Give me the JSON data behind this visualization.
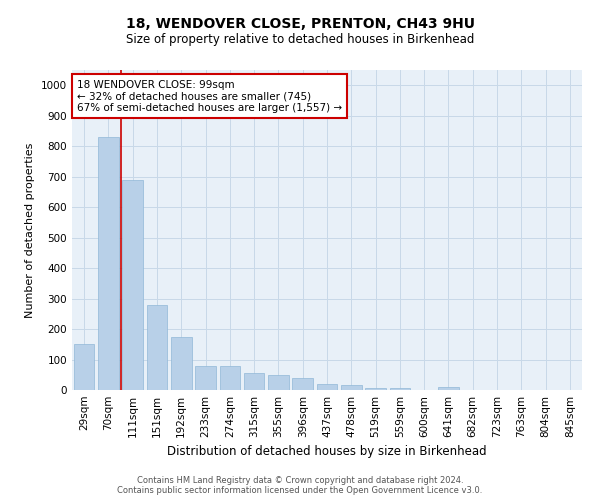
{
  "title1": "18, WENDOVER CLOSE, PRENTON, CH43 9HU",
  "title2": "Size of property relative to detached houses in Birkenhead",
  "xlabel": "Distribution of detached houses by size in Birkenhead",
  "ylabel": "Number of detached properties",
  "categories": [
    "29sqm",
    "70sqm",
    "111sqm",
    "151sqm",
    "192sqm",
    "233sqm",
    "274sqm",
    "315sqm",
    "355sqm",
    "396sqm",
    "437sqm",
    "478sqm",
    "519sqm",
    "559sqm",
    "600sqm",
    "641sqm",
    "682sqm",
    "723sqm",
    "763sqm",
    "804sqm",
    "845sqm"
  ],
  "values": [
    150,
    830,
    690,
    280,
    175,
    80,
    78,
    55,
    50,
    40,
    20,
    15,
    8,
    5,
    0,
    10,
    0,
    0,
    0,
    0,
    0
  ],
  "bar_color": "#b8d0e8",
  "bar_edge_color": "#90b8d8",
  "grid_color": "#c8d8e8",
  "bg_color": "#e8f0f8",
  "annotation_box_color": "#ffffff",
  "annotation_border_color": "#cc0000",
  "redline_color": "#cc0000",
  "annotation_text_line1": "18 WENDOVER CLOSE: 99sqm",
  "annotation_text_line2": "← 32% of detached houses are smaller (745)",
  "annotation_text_line3": "67% of semi-detached houses are larger (1,557) →",
  "footer1": "Contains HM Land Registry data © Crown copyright and database right 2024.",
  "footer2": "Contains public sector information licensed under the Open Government Licence v3.0.",
  "ylim": [
    0,
    1050
  ],
  "yticks": [
    0,
    100,
    200,
    300,
    400,
    500,
    600,
    700,
    800,
    900,
    1000
  ],
  "title1_fontsize": 10,
  "title2_fontsize": 8.5,
  "ylabel_fontsize": 8,
  "xlabel_fontsize": 8.5,
  "tick_fontsize": 7.5,
  "annotation_fontsize": 7.5,
  "footer_fontsize": 6
}
